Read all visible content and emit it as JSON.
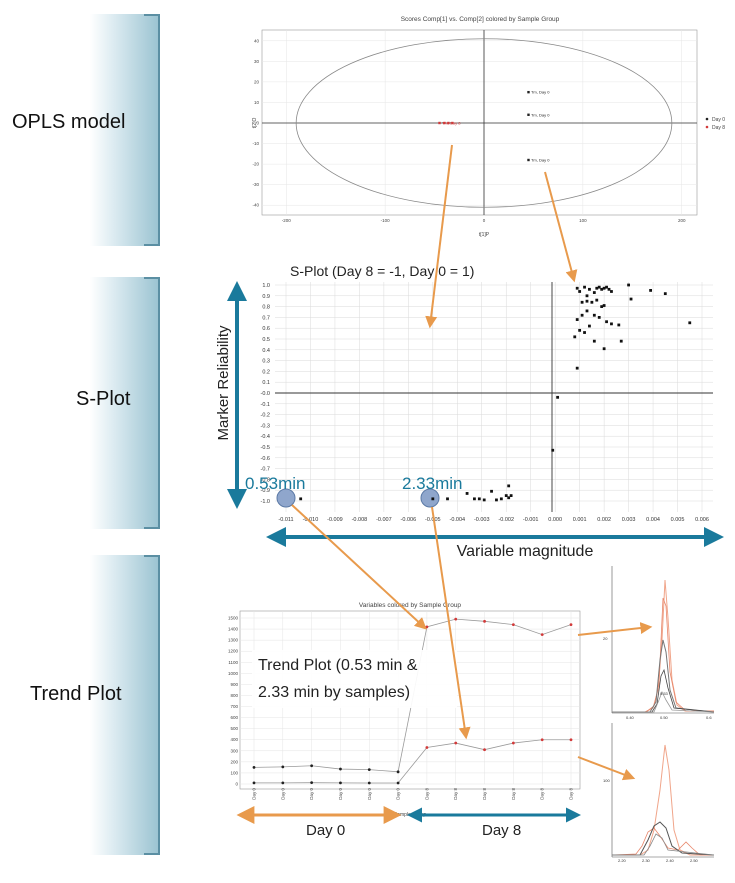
{
  "sections": [
    {
      "label": "OPLS model"
    },
    {
      "label": "S-Plot"
    },
    {
      "label": "Trend Plot"
    }
  ],
  "colors": {
    "accent": "#1a7a9c",
    "arrow": "#e89a4c",
    "series_red": "#d23a3a",
    "series_dark": "#222222"
  },
  "axes": {
    "reliability": "Marker Reliability",
    "magnitude": "Variable magnitude"
  },
  "annotations": {
    "peak1": "0.53min",
    "peak2": "2.33min",
    "trend_caption_line1": "Trend Plot (0.53 min &",
    "trend_caption_line2": "2.33 min by samples)",
    "day0": "Day 0",
    "day8": "Day 8"
  },
  "chart_data": [
    {
      "type": "scatter",
      "title": "Scores Comp[1] vs. Comp[2] colored by Sample Group",
      "xlabel": "t[1]P",
      "ylabel": "t[2]O",
      "xlim": [
        -220,
        220
      ],
      "ylim": [
        -45,
        45
      ],
      "xticks": [
        -200,
        -100,
        0,
        100,
        200
      ],
      "yticks": [
        40,
        30,
        20,
        10,
        0,
        -10,
        -20,
        -30,
        -40
      ],
      "legend": [
        "Day 0",
        "Day 8"
      ],
      "legend_position": "right",
      "ellipse": {
        "rx": 190,
        "ry": 41
      },
      "series": [
        {
          "name": "Day 0",
          "color": "#222222",
          "points": [
            [
              45,
              15,
              "Tm, Day 0"
            ],
            [
              45,
              4,
              "Tm, Day 0"
            ],
            [
              45,
              -18,
              "Tm, Day 0"
            ]
          ]
        },
        {
          "name": "Day 8",
          "color": "#d23a3a",
          "points": [
            [
              -45,
              0,
              "Tm, Day 8"
            ],
            [
              -40,
              0,
              ""
            ],
            [
              -36,
              0,
              ""
            ],
            [
              -32,
              0,
              ""
            ]
          ]
        }
      ]
    },
    {
      "type": "scatter",
      "title": "S-Plot (Day 8 = -1, Day 0 = 1)",
      "xlim": [
        -0.011,
        0.006
      ],
      "ylim": [
        -1.0,
        1.0
      ],
      "xticks": [
        "-0.011",
        "-0.010",
        "-0.009",
        "-0.008",
        "-0.007",
        "-0.006",
        "-0.005",
        "-0.004",
        "-0.003",
        "-0.002",
        "-0.001",
        "0.000",
        "0.001",
        "0.002",
        "0.003",
        "0.004",
        "0.005",
        "0.006"
      ],
      "yticks": [
        "1.0",
        "0.9",
        "0.8",
        "0.7",
        "0.6",
        "0.5",
        "0.4",
        "0.3",
        "0.2",
        "0.1",
        "-0.0",
        "-0.1",
        "-0.2",
        "-0.3",
        "-0.4",
        "-0.5",
        "-0.6",
        "-0.7",
        "-0.8",
        "-0.9",
        "-1.0"
      ],
      "points": [
        [
          -0.0104,
          -0.98
        ],
        [
          -0.005,
          -0.98
        ],
        [
          -0.0044,
          -0.98
        ],
        [
          -0.0036,
          -0.93
        ],
        [
          -0.0033,
          -0.98
        ],
        [
          -0.0031,
          -0.98
        ],
        [
          -0.0029,
          -0.99
        ],
        [
          -0.0026,
          -0.91
        ],
        [
          -0.0024,
          -0.99
        ],
        [
          -0.0022,
          -0.98
        ],
        [
          -0.002,
          -0.95
        ],
        [
          -0.0019,
          -0.97
        ],
        [
          -0.0018,
          -0.95
        ],
        [
          -0.0019,
          -0.86
        ],
        [
          -0.0001,
          -0.53
        ],
        [
          0.0001,
          -0.04
        ],
        [
          0.0009,
          0.97
        ],
        [
          0.001,
          0.94
        ],
        [
          0.0012,
          0.98
        ],
        [
          0.0013,
          0.9
        ],
        [
          0.0014,
          0.96
        ],
        [
          0.0016,
          0.93
        ],
        [
          0.0017,
          0.97
        ],
        [
          0.0018,
          0.98
        ],
        [
          0.0019,
          0.96
        ],
        [
          0.002,
          0.97
        ],
        [
          0.0021,
          0.98
        ],
        [
          0.0022,
          0.96
        ],
        [
          0.0023,
          0.94
        ],
        [
          0.0011,
          0.84
        ],
        [
          0.0013,
          0.85
        ],
        [
          0.0015,
          0.84
        ],
        [
          0.0017,
          0.86
        ],
        [
          0.0019,
          0.8
        ],
        [
          0.002,
          0.81
        ],
        [
          0.0009,
          0.68
        ],
        [
          0.0011,
          0.72
        ],
        [
          0.0013,
          0.76
        ],
        [
          0.0016,
          0.72
        ],
        [
          0.0018,
          0.7
        ],
        [
          0.0021,
          0.66
        ],
        [
          0.0023,
          0.64
        ],
        [
          0.0026,
          0.63
        ],
        [
          0.0008,
          0.52
        ],
        [
          0.001,
          0.58
        ],
        [
          0.0012,
          0.56
        ],
        [
          0.0014,
          0.62
        ],
        [
          0.0016,
          0.48
        ],
        [
          0.002,
          0.41
        ],
        [
          0.0027,
          0.48
        ],
        [
          0.0031,
          0.87
        ],
        [
          0.0039,
          0.95
        ],
        [
          0.0045,
          0.92
        ],
        [
          0.003,
          1.0
        ],
        [
          0.0009,
          0.23
        ],
        [
          0.0055,
          0.65
        ]
      ]
    },
    {
      "type": "line",
      "title": "Variables colored by Sample Group",
      "xlabel": "Sample Group",
      "categories": [
        "Day 0",
        "Day 0",
        "Day 0",
        "Day 0",
        "Day 0",
        "Day 0",
        "Day 8",
        "Day 8",
        "Day 8",
        "Day 8",
        "Day 8",
        "Day 8"
      ],
      "ylim": [
        0,
        1500
      ],
      "yticks": [
        1500,
        1400,
        1300,
        1200,
        1100,
        1000,
        900,
        800,
        700,
        600,
        500,
        400,
        300,
        200,
        100,
        0
      ],
      "series": [
        {
          "values": [
            150,
            155,
            165,
            135,
            130,
            110,
            1420,
            1490,
            1470,
            1440,
            1350,
            1440
          ]
        },
        {
          "values": [
            10,
            10,
            12,
            10,
            9,
            9,
            330,
            370,
            310,
            370,
            400,
            400
          ]
        }
      ]
    }
  ],
  "thumbnails": {
    "top": {
      "peak_label": "0.53",
      "xticks": [
        "0.40",
        "0.50",
        "0.6"
      ],
      "ylabel": "20"
    },
    "bottom": {
      "xticks": [
        "2.20",
        "2.30",
        "2.40",
        "2.50"
      ],
      "ylabel": "100"
    }
  }
}
